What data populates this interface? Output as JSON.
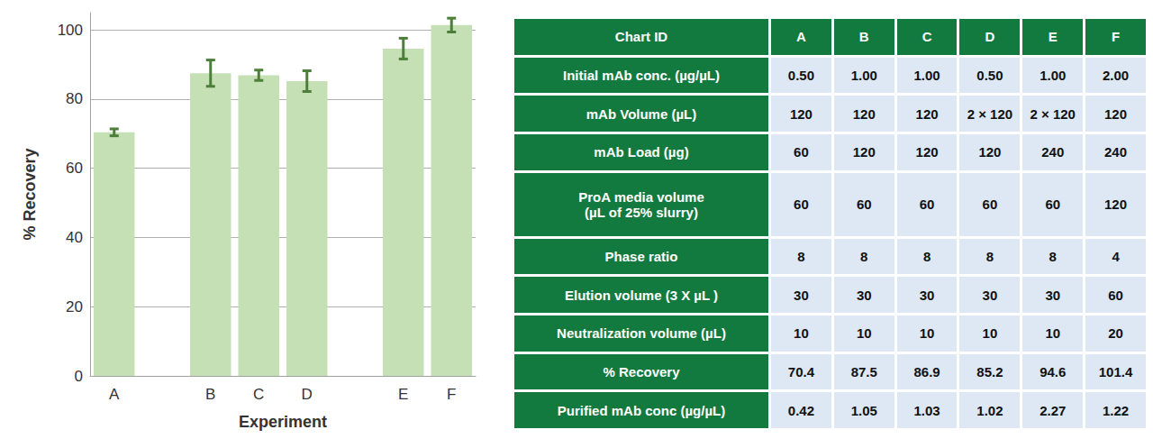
{
  "chart_data": {
    "type": "bar",
    "x_label": "Experiment",
    "y_label": "% Recovery",
    "categories": [
      "A",
      null,
      "B",
      "C",
      "D",
      null,
      "E",
      "F"
    ],
    "values": [
      70.4,
      null,
      87.5,
      86.9,
      85.2,
      null,
      94.6,
      101.4
    ],
    "errors": [
      1.0,
      null,
      3.8,
      1.5,
      3.0,
      null,
      3.0,
      2.0
    ],
    "color": "#c5e0b4",
    "ylim": [
      0,
      105
    ],
    "yticks": [
      0,
      20,
      40,
      60,
      80,
      100
    ],
    "grid": true
  },
  "table": {
    "header": [
      "Chart ID",
      "A",
      "B",
      "C",
      "D",
      "E",
      "F"
    ],
    "rows": [
      [
        "Initial mAb conc. (µg/µL)",
        "0.50",
        "1.00",
        "1.00",
        "0.50",
        "1.00",
        "2.00"
      ],
      [
        "mAb Volume (µL)",
        "120",
        "120",
        "120",
        "2 × 120",
        "2 × 120",
        "120"
      ],
      [
        "mAb Load (µg)",
        "60",
        "120",
        "120",
        "120",
        "240",
        "240"
      ],
      [
        "ProA media volume\n(µL of 25% slurry)",
        "60",
        "60",
        "60",
        "60",
        "60",
        "120"
      ],
      [
        "Phase ratio",
        "8",
        "8",
        "8",
        "8",
        "8",
        "4"
      ],
      [
        "Elution volume (3 X µL )",
        "30",
        "30",
        "30",
        "30",
        "30",
        "60"
      ],
      [
        "Neutralization volume (µL)",
        "10",
        "10",
        "10",
        "10",
        "10",
        "20"
      ],
      [
        "% Recovery",
        "70.4",
        "87.5",
        "86.9",
        "85.2",
        "94.6",
        "101.4"
      ],
      [
        "Purified mAb conc (µg/µL)",
        "0.42",
        "1.05",
        "1.03",
        "1.02",
        "2.27",
        "1.22"
      ]
    ]
  }
}
